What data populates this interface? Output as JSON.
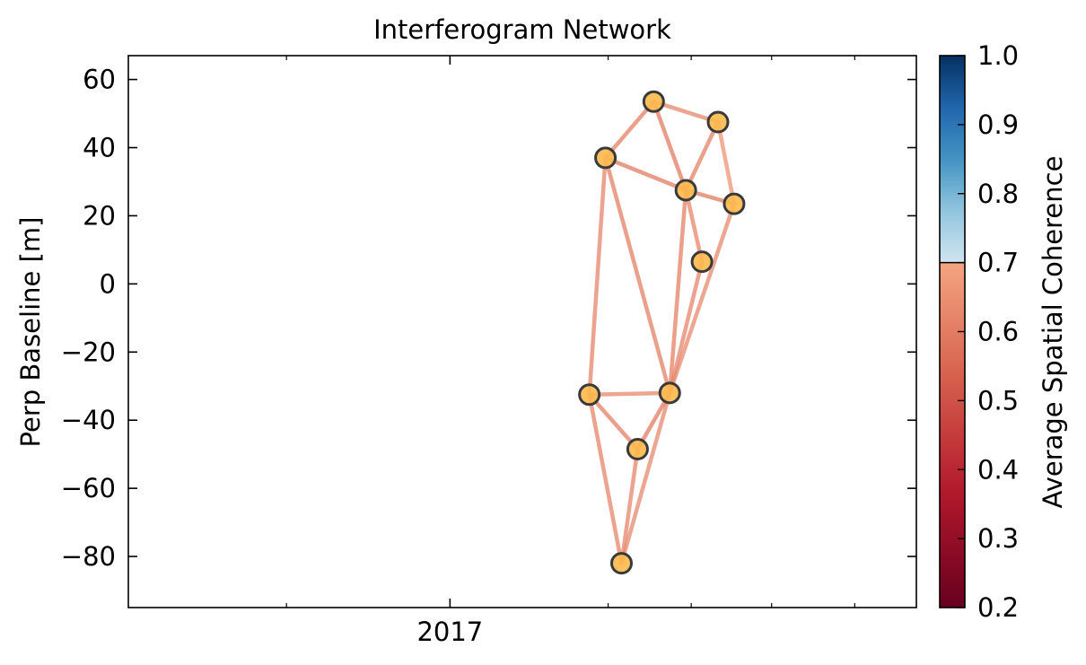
{
  "chart_data": {
    "type": "scatter",
    "title": "Interferogram Network",
    "ylabel": "Perp Baseline [m]",
    "xlabel": "",
    "ylim": [
      -95,
      67
    ],
    "yticks": [
      60,
      40,
      20,
      0,
      -20,
      -40,
      -60,
      -80
    ],
    "ytick_labels": [
      "60",
      "40",
      "20",
      "0",
      "−20",
      "−40",
      "−60",
      "−80"
    ],
    "xlim": [
      "2016-09-03",
      "2017-06-24"
    ],
    "xticks_major": [
      {
        "date": "2017-01-01",
        "label": "2017"
      }
    ],
    "xticks_minor": [
      "2016-11-01",
      "2017-03-01",
      "2017-04-01",
      "2017-05-01",
      "2017-06-01"
    ],
    "nodes": [
      {
        "date": "2017-02-22",
        "bperp": -32.5
      },
      {
        "date": "2017-02-28",
        "bperp": 37.0
      },
      {
        "date": "2017-03-06",
        "bperp": -82.0
      },
      {
        "date": "2017-03-12",
        "bperp": -48.5
      },
      {
        "date": "2017-03-18",
        "bperp": 53.5
      },
      {
        "date": "2017-03-24",
        "bperp": -32.0
      },
      {
        "date": "2017-03-30",
        "bperp": 27.5
      },
      {
        "date": "2017-04-05",
        "bperp": 6.5
      },
      {
        "date": "2017-04-11",
        "bperp": 47.5
      },
      {
        "date": "2017-04-17",
        "bperp": 23.5
      }
    ],
    "edges": [
      {
        "from": 0,
        "to": 1,
        "coherence": 0.62
      },
      {
        "from": 0,
        "to": 5,
        "coherence": 0.63
      },
      {
        "from": 0,
        "to": 3,
        "coherence": 0.61
      },
      {
        "from": 0,
        "to": 2,
        "coherence": 0.62
      },
      {
        "from": 1,
        "to": 4,
        "coherence": 0.61
      },
      {
        "from": 1,
        "to": 6,
        "coherence": 0.6
      },
      {
        "from": 1,
        "to": 5,
        "coherence": 0.61
      },
      {
        "from": 2,
        "to": 3,
        "coherence": 0.62
      },
      {
        "from": 2,
        "to": 5,
        "coherence": 0.63
      },
      {
        "from": 3,
        "to": 5,
        "coherence": 0.6
      },
      {
        "from": 4,
        "to": 6,
        "coherence": 0.6
      },
      {
        "from": 4,
        "to": 8,
        "coherence": 0.62
      },
      {
        "from": 5,
        "to": 6,
        "coherence": 0.61
      },
      {
        "from": 5,
        "to": 7,
        "coherence": 0.62
      },
      {
        "from": 5,
        "to": 9,
        "coherence": 0.63
      },
      {
        "from": 6,
        "to": 7,
        "coherence": 0.62
      },
      {
        "from": 6,
        "to": 8,
        "coherence": 0.61
      },
      {
        "from": 6,
        "to": 9,
        "coherence": 0.6
      },
      {
        "from": 8,
        "to": 9,
        "coherence": 0.66
      }
    ],
    "colorbar": {
      "label": "Average Spatial Coherence",
      "min": 0.2,
      "max": 1.0,
      "threshold": 0.7,
      "ticks": [
        1.0,
        0.9,
        0.8,
        0.7,
        0.6,
        0.5,
        0.4,
        0.3,
        0.2
      ],
      "tick_labels": [
        "1.0",
        "0.9",
        "0.8",
        "0.7",
        "0.6",
        "0.5",
        "0.4",
        "0.3",
        "0.2"
      ],
      "low_colors": [
        "#67001f",
        "#b2182b",
        "#d6604d",
        "#f4a582"
      ],
      "high_colors": [
        "#d1e5f0",
        "#92c5de",
        "#4393c3",
        "#2166ac",
        "#053061"
      ]
    },
    "node_color": "#fdb94e",
    "node_edge_color": "#3a3a3a",
    "grid": false,
    "legend": "none"
  }
}
